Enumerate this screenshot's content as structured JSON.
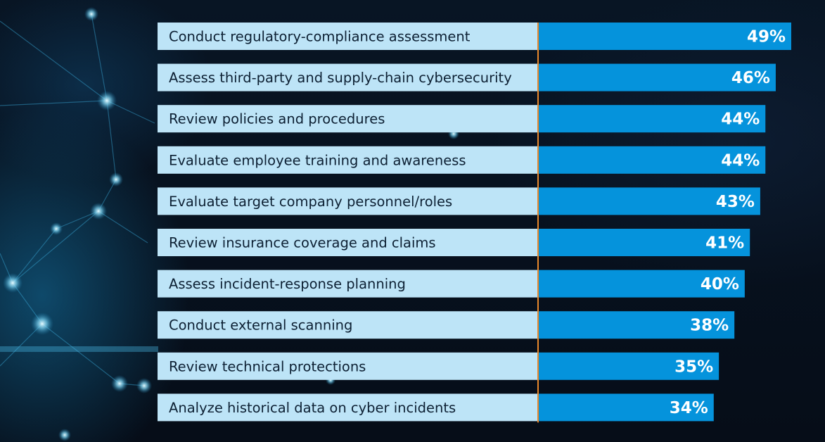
{
  "colors": {
    "label_bg": "#bde4f7",
    "bar": "#0593dc",
    "axis_line": "#e8872b",
    "label_text": "#0d2033",
    "value_text": "#ffffff",
    "background": "#07101c"
  },
  "chart_data": {
    "type": "bar",
    "orientation": "horizontal",
    "title": "",
    "xlabel": "",
    "ylabel": "",
    "xlim": [
      0,
      49
    ],
    "grid": false,
    "legend": "none",
    "categories": [
      "Conduct regulatory-compliance assessment",
      "Assess third-party and supply-chain cybersecurity",
      "Review policies and procedures",
      "Evaluate employee training and awareness",
      "Evaluate target company personnel/roles",
      "Review insurance coverage and claims",
      "Assess incident-response planning",
      "Conduct external scanning",
      "Review technical protections",
      "Analyze historical data on cyber incidents"
    ],
    "values": [
      49,
      46,
      44,
      44,
      43,
      41,
      40,
      38,
      35,
      34
    ],
    "value_labels": [
      "49%",
      "46%",
      "44%",
      "44%",
      "43%",
      "41%",
      "40%",
      "38%",
      "35%",
      "34%"
    ]
  }
}
